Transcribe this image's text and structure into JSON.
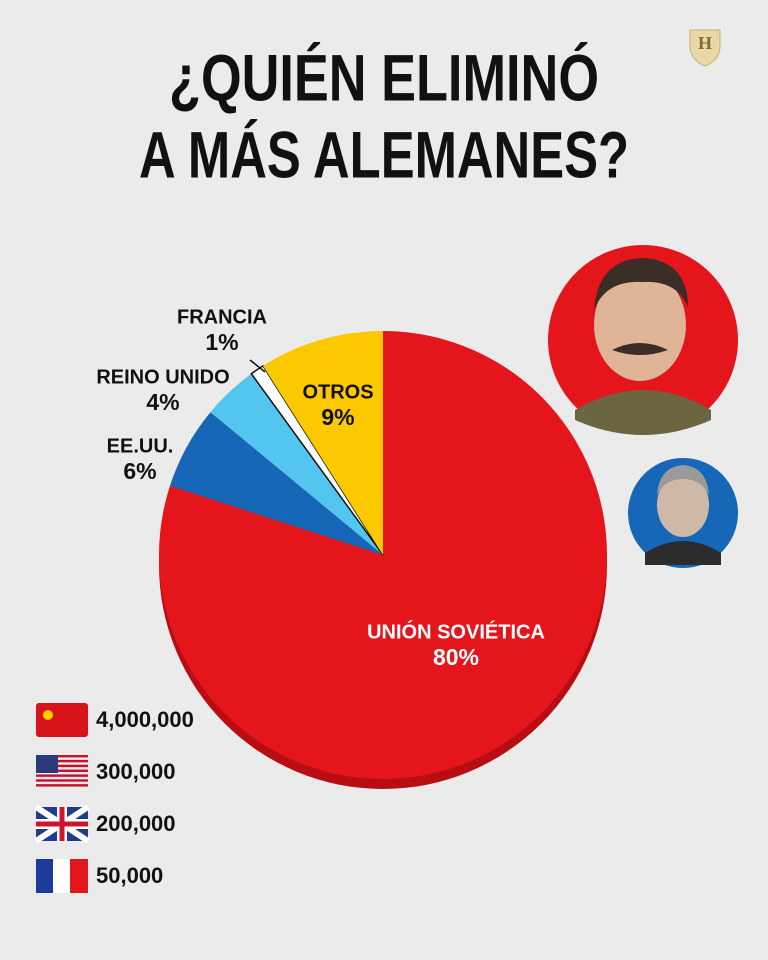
{
  "chart_data": {
    "type": "pie",
    "title": [
      "¿QUIÉN ELIMINÓ",
      "A MÁS ALEMANES?"
    ],
    "categories": [
      "UNIÓN SOVIÉTICA",
      "EE.UU.",
      "REINO UNIDO",
      "FRANCIA",
      "OTROS"
    ],
    "values": [
      80,
      6,
      4,
      1,
      9
    ],
    "value_labels": [
      "80%",
      "6%",
      "4%",
      "1%",
      "9%"
    ],
    "colors": [
      "#e4161c",
      "#1667b8",
      "#52c6ee",
      "#ffffff",
      "#fcc800"
    ],
    "flag_counts": [
      "4,000,000",
      "300,000",
      "200,000",
      "50,000"
    ]
  }
}
